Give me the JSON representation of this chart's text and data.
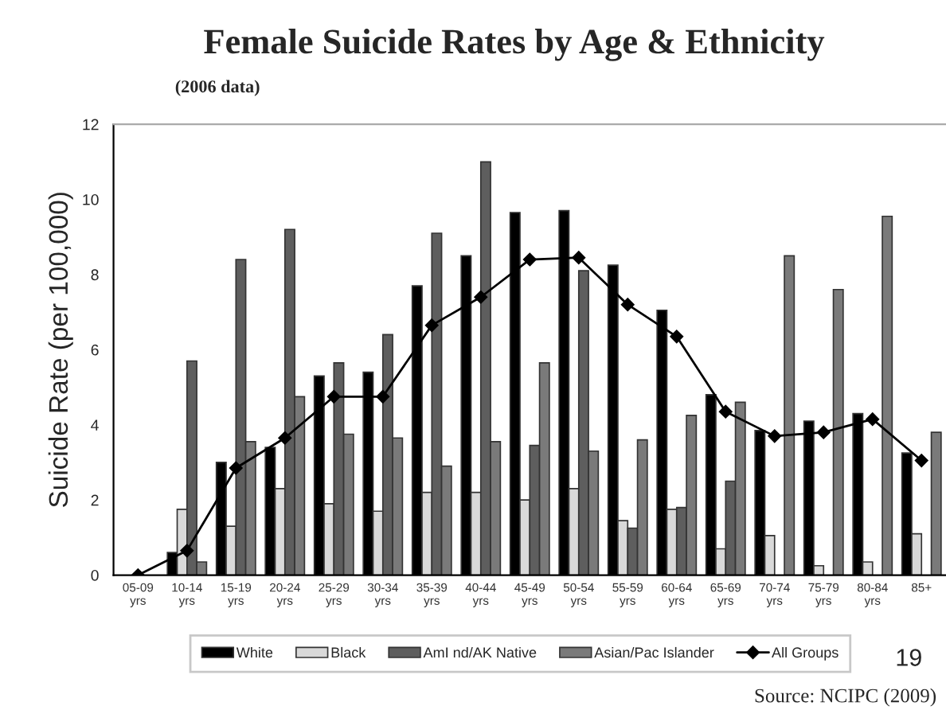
{
  "chart_data": {
    "type": "bar",
    "title": "Female Suicide Rates by Age & Ethnicity",
    "subtitle": "(2006 data)",
    "ylabel": "Suicide Rate (per 100,000)",
    "categories": [
      "05-09\nyrs",
      "10-14\nyrs",
      "15-19\nyrs",
      "20-24\nyrs",
      "25-29\nyrs",
      "30-34\nyrs",
      "35-39\nyrs",
      "40-44\nyrs",
      "45-49\nyrs",
      "50-54\nyrs",
      "55-59\nyrs",
      "60-64\nyrs",
      "65-69\nyrs",
      "70-74\nyrs",
      "75-79\nyrs",
      "80-84\nyrs",
      "85+"
    ],
    "series": [
      {
        "name": "White",
        "color": "#000000",
        "values": [
          null,
          0.6,
          3.0,
          3.4,
          5.3,
          5.4,
          7.7,
          8.5,
          9.65,
          9.7,
          8.25,
          7.05,
          4.8,
          3.85,
          4.1,
          4.3,
          3.25
        ]
      },
      {
        "name": "Black",
        "color": "#d9d9d9",
        "values": [
          null,
          1.75,
          1.3,
          2.3,
          1.9,
          1.7,
          2.2,
          2.2,
          2.0,
          2.3,
          1.45,
          1.75,
          0.7,
          1.05,
          0.25,
          0.35,
          1.1
        ]
      },
      {
        "name": "AmI nd/AK Native",
        "color": "#5e5e5e",
        "values": [
          null,
          5.7,
          8.4,
          9.2,
          5.65,
          6.4,
          9.1,
          11.0,
          3.45,
          8.1,
          1.25,
          1.8,
          2.5,
          null,
          null,
          null,
          null
        ]
      },
      {
        "name": "Asian/Pac Islander",
        "color": "#7a7a7a",
        "values": [
          null,
          0.35,
          3.55,
          4.75,
          3.75,
          3.65,
          2.9,
          3.55,
          5.65,
          3.3,
          3.6,
          4.25,
          4.6,
          8.5,
          7.6,
          9.55,
          3.8
        ]
      },
      {
        "name": "All Groups",
        "type": "line",
        "color": "#000000",
        "marker": "diamond",
        "values": [
          0,
          0.65,
          2.85,
          3.65,
          4.75,
          4.75,
          6.65,
          7.4,
          8.4,
          8.45,
          7.2,
          6.35,
          4.35,
          3.7,
          3.8,
          4.15,
          3.05
        ]
      }
    ],
    "ylim": [
      0,
      12
    ],
    "yticks": [
      0,
      2,
      4,
      6,
      8,
      10,
      12
    ],
    "grid": false,
    "legend": "bottom",
    "annotations": [
      "19",
      "Source: NCIPC (2009)"
    ]
  }
}
